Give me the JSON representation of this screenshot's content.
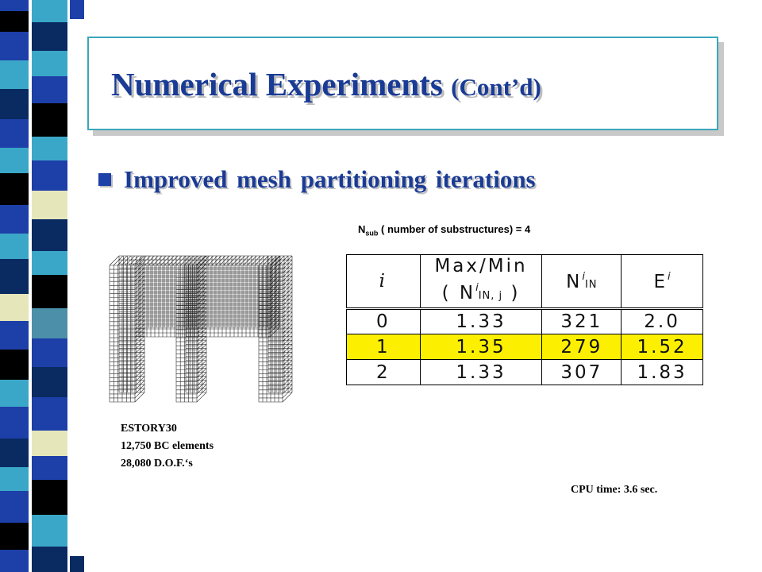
{
  "slide": {
    "title": "Numerical Experiments",
    "title_suffix": "(Cont’d)",
    "bullet": "Improved mesh partitioning iterations",
    "nsub_symbol": "N",
    "nsub_subscript": "sub",
    "nsub_text": " ( number of substructures) = 4",
    "caption_lines": [
      "ESTORY30",
      "12,750  BC elements",
      "28,080 D.O.F.‘s"
    ],
    "cpu_time": "CPU time: 3.6 sec."
  },
  "table": {
    "headers": {
      "col0": "i",
      "col1_line1": "Max/Min",
      "col1_line2_open": "( N",
      "col1_line2_sup": "i",
      "col1_line2_sub": "IN, j",
      "col1_line2_close": " )",
      "col2_main": "N",
      "col2_sup": "i",
      "col2_sub": "IN",
      "col3_main": "E",
      "col3_sup": "i"
    },
    "rows": [
      {
        "i": "0",
        "maxmin": "1.33",
        "nin": "321",
        "e": "2.0",
        "highlighted": false
      },
      {
        "i": "1",
        "maxmin": "1.35",
        "nin": "279",
        "e": "1.52",
        "highlighted": true
      },
      {
        "i": "2",
        "maxmin": "1.33",
        "nin": "307",
        "e": "1.83",
        "highlighted": false
      }
    ]
  },
  "colors": {
    "title_text": "#1a3b95",
    "title_border": "#3aa6bb",
    "highlight_row": "#fcf000",
    "stripe": [
      "#1d3fa8",
      "#0a2a62",
      "#3ba7c8",
      "#e6e6bb",
      "#000000",
      "#4b8fa8"
    ]
  }
}
